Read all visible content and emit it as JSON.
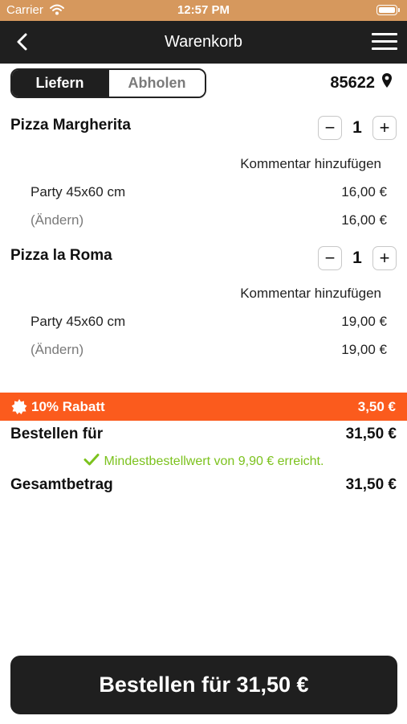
{
  "statusbar": {
    "carrier": "Carrier",
    "time": "12:57 PM"
  },
  "header": {
    "title": "Warenkorb"
  },
  "mode": {
    "deliver_label": "Liefern",
    "pickup_label": "Abholen",
    "zip": "85622"
  },
  "items": [
    {
      "name": "Pizza Margherita",
      "quantity": "1",
      "comment_label": "Kommentar hinzufügen",
      "option": "Party 45x60 cm",
      "option_price": "16,00 €",
      "change_label": "(Ändern)",
      "line_total": "16,00 €"
    },
    {
      "name": "Pizza la Roma",
      "quantity": "1",
      "comment_label": "Kommentar hinzufügen",
      "option": "Party 45x60 cm",
      "option_price": "19,00 €",
      "change_label": "(Ändern)",
      "line_total": "19,00 €"
    }
  ],
  "discount": {
    "label": "10% Rabatt",
    "value": "3,50 €",
    "color": "#fb5b1d"
  },
  "summary": {
    "order_for_label": "Bestellen für",
    "order_for_value": "31,50 €",
    "minimum_text": "Mindestbestellwert von 9,90 € erreicht.",
    "total_label": "Gesamtbetrag",
    "total_value": "31,50 €"
  },
  "order_button": {
    "label": "Bestellen für 31,50 €"
  },
  "colors": {
    "accent": "#fb5b1d",
    "success": "#7cc21e",
    "dark": "#1f1f1f",
    "statusbar": "#d6985d"
  }
}
